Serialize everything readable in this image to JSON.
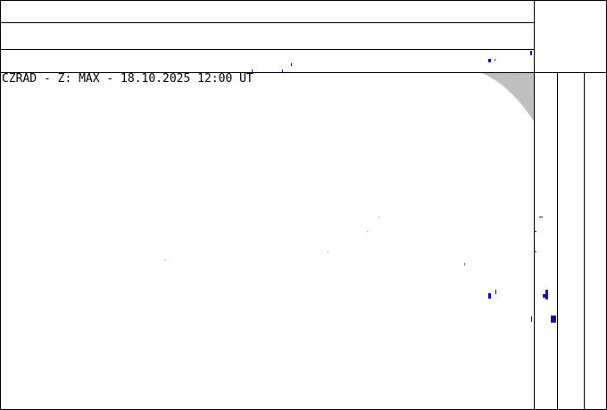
{
  "map": {
    "title": "CZRAD - Z: MAX - 18.10.2025 12:00 UT",
    "colors": {
      "frame": "#000000",
      "out_of_range": "#c0c0c0",
      "echo_weak": "#2a00a0",
      "echo_blue": "#0000ff"
    }
  }
}
